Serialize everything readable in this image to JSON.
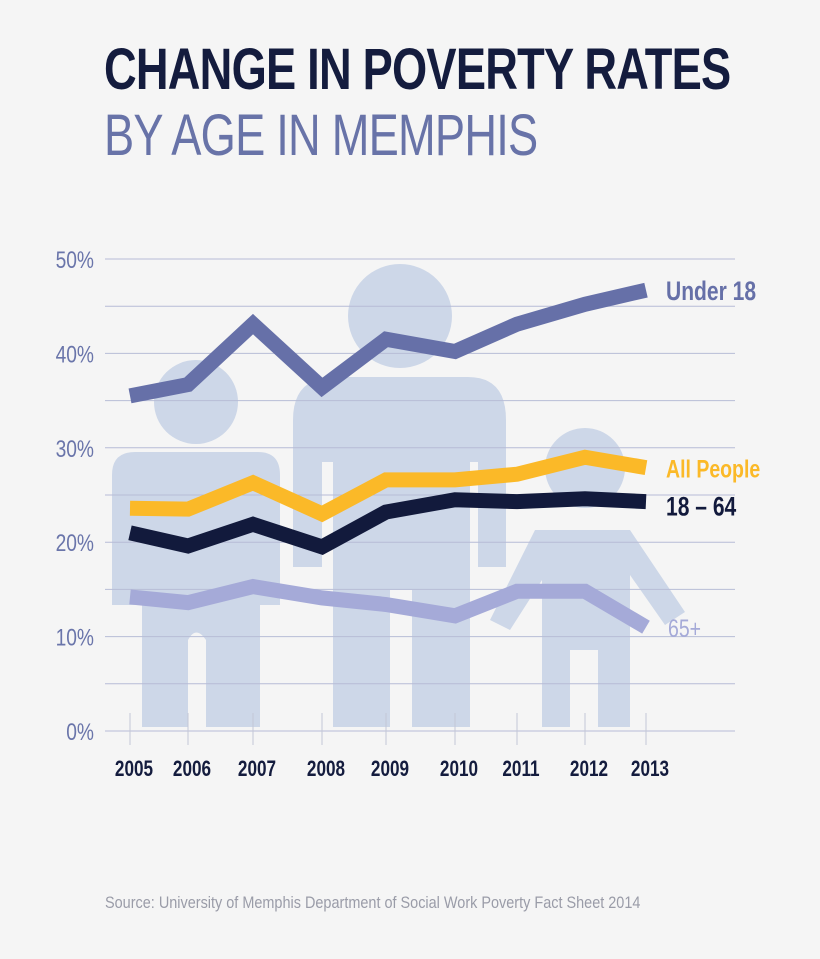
{
  "title": "CHANGE IN POVERTY RATES",
  "subtitle": "BY AGE IN MEMPHIS",
  "source": "Source: University of Memphis Department of Social Work Poverty Fact Sheet 2014",
  "chart_data": {
    "type": "line",
    "x": [
      "2005",
      "2006",
      "2007",
      "2008",
      "2009",
      "2010",
      "2011",
      "2012",
      "2013"
    ],
    "ylim": [
      0,
      50
    ],
    "yticks": [
      "0%",
      "10%",
      "20%",
      "30%",
      "40%",
      "50%"
    ],
    "grid": true,
    "legend": "inline labels at right end of lines",
    "series": [
      {
        "name": "Under 18",
        "color": "#6670a8",
        "values": [
          35.5,
          36.7,
          43.1,
          36.4,
          41.5,
          40.2,
          43.1,
          45.2,
          46.7
        ]
      },
      {
        "name": "All People",
        "color": "#fbb928",
        "values": [
          23.6,
          23.5,
          26.3,
          23.0,
          26.6,
          26.6,
          27.2,
          29.0,
          27.9
        ]
      },
      {
        "name": "18 – 64",
        "color": "#121a3c",
        "values": [
          21.0,
          19.6,
          21.9,
          19.5,
          23.2,
          24.5,
          24.3,
          24.6,
          24.3
        ]
      },
      {
        "name": "65+",
        "color": "#a5aad8",
        "values": [
          14.2,
          13.6,
          15.3,
          14.1,
          13.4,
          12.2,
          14.8,
          14.8,
          11.0
        ]
      }
    ]
  }
}
